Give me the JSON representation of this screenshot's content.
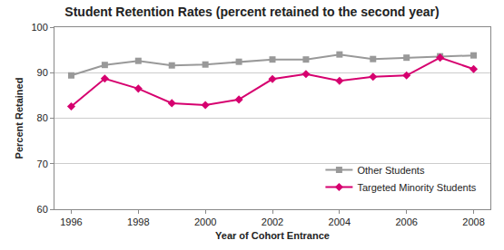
{
  "chart_data": {
    "type": "line",
    "title": "Student Retention Rates (percent retained to the second year)",
    "x_label": "Year of Cohort Entrance",
    "y_label": "Percent Retained",
    "x": [
      1996,
      1997,
      1998,
      1999,
      2000,
      2001,
      2002,
      2003,
      2004,
      2005,
      2006,
      2007,
      2008
    ],
    "series": [
      {
        "name": "Other Students",
        "color": "#999999",
        "marker": "square",
        "line_style": "solid",
        "values": [
          89.4,
          91.7,
          92.6,
          91.6,
          91.8,
          92.4,
          92.9,
          92.9,
          94.0,
          93.0,
          93.3,
          93.6,
          93.8
        ]
      },
      {
        "name": "Targeted Minority Students",
        "color": "#d6006f",
        "marker": "diamond",
        "line_style": "solid",
        "values": [
          82.6,
          88.7,
          86.5,
          83.3,
          82.9,
          84.1,
          88.6,
          89.7,
          88.2,
          89.1,
          89.4,
          93.3,
          90.8
        ]
      }
    ],
    "xlim": [
      1995.5,
      2008.5
    ],
    "xticks": [
      1996,
      1998,
      2000,
      2002,
      2004,
      2006,
      2008
    ],
    "ylim": [
      60,
      100
    ],
    "yticks": [
      60,
      70,
      80,
      90,
      100
    ],
    "grid": true,
    "legend": "lower right"
  }
}
